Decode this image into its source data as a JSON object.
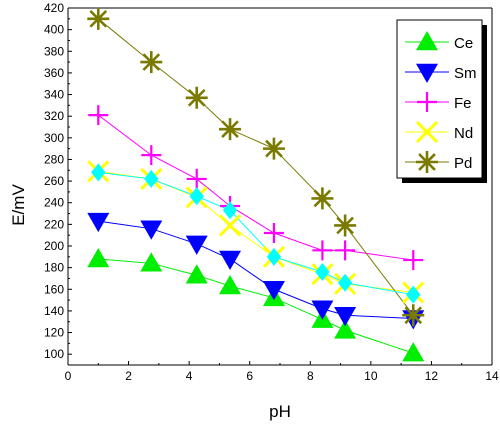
{
  "chart_data": {
    "type": "scatter",
    "xlabel": "pH",
    "ylabel": "E/mV",
    "xlim": [
      0,
      14
    ],
    "ylim": [
      90,
      420
    ],
    "xticks": [
      0,
      2,
      4,
      6,
      8,
      10,
      12,
      14
    ],
    "yticks": [
      100,
      120,
      140,
      160,
      180,
      200,
      220,
      240,
      260,
      280,
      300,
      320,
      340,
      360,
      380,
      400,
      420
    ],
    "grid": false,
    "legend_position": "top-right",
    "x": [
      1.0,
      2.75,
      4.25,
      5.35,
      6.8,
      8.4,
      9.15,
      11.4
    ],
    "series": [
      {
        "name": "Ce",
        "color": "#00ee00",
        "marker": "triangle-up",
        "values": [
          188,
          184,
          173,
          163,
          152,
          132,
          122,
          101
        ]
      },
      {
        "name": "Sm",
        "color": "#0000ff",
        "marker": "triangle-down",
        "values": [
          223,
          216,
          202,
          188,
          160,
          142,
          136,
          133
        ]
      },
      {
        "name": "Fe",
        "color": "#ff00ff",
        "marker": "plus",
        "values": [
          321,
          284,
          262,
          237,
          212,
          196,
          196,
          187
        ]
      },
      {
        "name": "Nd",
        "color": "#ffff00",
        "marker": "x",
        "values": [
          269,
          262,
          245,
          219,
          190,
          174,
          165,
          157
        ]
      },
      {
        "name": "Pd",
        "color": "#7a7a00",
        "marker": "star",
        "values": [
          410,
          370,
          337,
          308,
          290,
          244,
          219,
          136
        ]
      }
    ],
    "overlay_series": {
      "name": "",
      "color": "#00ffff",
      "marker": "diamond",
      "values": [
        268,
        262,
        246,
        233,
        190,
        176,
        166,
        155
      ]
    }
  }
}
